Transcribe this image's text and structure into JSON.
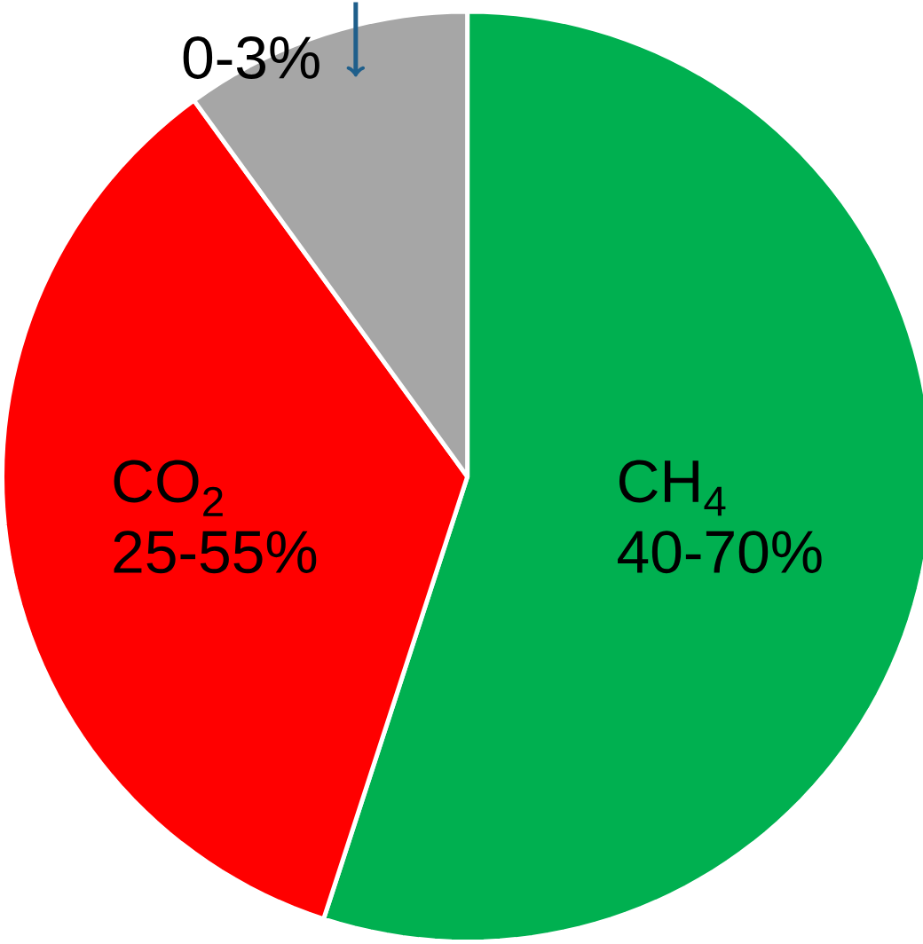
{
  "chart_data": {
    "type": "pie",
    "categories": [
      "CH$_{4}$",
      "CO$_{2}$",
      null
    ],
    "values": [
      55,
      35,
      10
    ],
    "colors": [
      "#00b050",
      "#ff0000",
      "#a6a6a6"
    ],
    "annotations": [
      "40-70%",
      "25-55%",
      "0-3%"
    ]
  }
}
